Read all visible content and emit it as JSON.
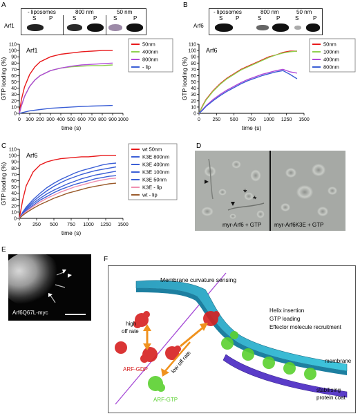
{
  "panels": {
    "A": {
      "letter": "A",
      "chart_label": "Arf1",
      "blot_label": "Arf1",
      "blot_headers": [
        "- liposomes",
        "800 nm",
        "50 nm"
      ],
      "blot_sub": [
        "S",
        "P",
        "S",
        "P",
        "S",
        "P"
      ]
    },
    "B": {
      "letter": "B",
      "chart_label": "Arf6",
      "blot_label": "Arf6",
      "blot_headers": [
        "- liposomes",
        "800 nm",
        "50 nm"
      ],
      "blot_sub": [
        "S",
        "P",
        "S",
        "P",
        "S",
        "P"
      ]
    },
    "C": {
      "letter": "C",
      "chart_label": "Arf6"
    },
    "D": {
      "letter": "D",
      "left_caption": "myr-Arf6 + GTP",
      "right_caption": "myr-Arf6K3E + GTP",
      "asterisk": "*"
    },
    "E": {
      "letter": "E",
      "caption": "Arf6Q67L-myc"
    },
    "F": {
      "letter": "F",
      "title": "Membrane curvature sensing",
      "right_text": [
        "Helix insertion",
        "GTP loading",
        "Effector molecule recruitment"
      ],
      "high_off": [
        "high",
        "off rate"
      ],
      "low_off": "low off rate",
      "arf_gdp": "ARF-GDP",
      "arf_gtp": "ARF-GTP",
      "membrane": "membrane",
      "coat": [
        "stabilising",
        "protein coat"
      ]
    }
  },
  "colors": {
    "red": "#e8191b",
    "green": "#8fd14f",
    "purple": "#b04ad8",
    "blue": "#3b5fd6",
    "pink": "#f08fb0",
    "brown": "#9a5a2a",
    "teal": "#3cc0d8",
    "orange": "#f0921e"
  },
  "chart_data": [
    {
      "type": "line",
      "id": "A",
      "title": "Arf1",
      "ylabel": "GTP loading (%)",
      "xlabel": "time (s)",
      "xlim": [
        0,
        1000
      ],
      "ylim": [
        0,
        110
      ],
      "xticks": [
        0,
        100,
        200,
        300,
        400,
        500,
        600,
        700,
        800,
        900,
        1000
      ],
      "yticks": [
        0,
        10,
        20,
        30,
        40,
        50,
        60,
        70,
        80,
        90,
        100,
        110
      ],
      "legend_position": "right",
      "series": [
        {
          "name": "50nm",
          "color": "#e8191b",
          "x": [
            0,
            20,
            50,
            100,
            150,
            200,
            300,
            400,
            500,
            600,
            700,
            800,
            900
          ],
          "values": [
            0,
            22,
            42,
            62,
            74,
            82,
            90,
            94,
            96,
            98,
            99,
            100,
            100
          ]
        },
        {
          "name": "400nm",
          "color": "#8fd14f",
          "x": [
            0,
            20,
            50,
            100,
            150,
            200,
            300,
            400,
            500,
            600,
            700,
            800,
            900
          ],
          "values": [
            0,
            12,
            27,
            43,
            53,
            60,
            68,
            72,
            74,
            75,
            76,
            76,
            77
          ]
        },
        {
          "name": "800nm",
          "color": "#b04ad8",
          "x": [
            0,
            20,
            50,
            100,
            150,
            200,
            300,
            400,
            500,
            600,
            700,
            800,
            900
          ],
          "values": [
            0,
            12,
            27,
            43,
            53,
            60,
            68,
            72,
            75,
            77,
            78,
            79,
            80
          ]
        },
        {
          "name": "- lip",
          "color": "#3b5fd6",
          "x": [
            0,
            50,
            100,
            200,
            300,
            400,
            500,
            600,
            700,
            800,
            900
          ],
          "values": [
            0,
            2,
            4,
            6,
            8,
            9,
            10,
            11,
            11.5,
            12,
            12.5
          ]
        }
      ]
    },
    {
      "type": "line",
      "id": "B",
      "title": "Arf6",
      "ylabel": "GTP loading (%)",
      "xlabel": "time (s)",
      "xlim": [
        0,
        1500
      ],
      "ylim": [
        0,
        110
      ],
      "xticks": [
        0,
        250,
        500,
        750,
        1000,
        1250,
        1500
      ],
      "yticks": [
        0,
        10,
        20,
        30,
        40,
        50,
        60,
        70,
        80,
        90,
        100,
        110
      ],
      "legend_position": "right",
      "series": [
        {
          "name": "50nm",
          "color": "#e8191b",
          "x": [
            0,
            50,
            100,
            200,
            300,
            400,
            500,
            600,
            700,
            800,
            900,
            1000,
            1100,
            1200,
            1300,
            1400
          ],
          "values": [
            0,
            12,
            22,
            36,
            47,
            56,
            63,
            70,
            75,
            80,
            85,
            90,
            93,
            97,
            99,
            99
          ]
        },
        {
          "name": "100nm",
          "color": "#8fd14f",
          "x": [
            0,
            50,
            100,
            200,
            300,
            400,
            500,
            600,
            700,
            800,
            900,
            1000,
            1100,
            1200,
            1300,
            1400
          ],
          "values": [
            0,
            11,
            21,
            35,
            46,
            55,
            62,
            69,
            74,
            79,
            84,
            89,
            93,
            96,
            98,
            99
          ]
        },
        {
          "name": "400nm",
          "color": "#b04ad8",
          "x": [
            0,
            50,
            100,
            200,
            300,
            400,
            500,
            600,
            700,
            800,
            900,
            1000,
            1100,
            1200,
            1300,
            1400
          ],
          "values": [
            0,
            6,
            12,
            22,
            30,
            37,
            43,
            49,
            54,
            58,
            62,
            65,
            68,
            70,
            66,
            64
          ]
        },
        {
          "name": "800nm",
          "color": "#3b5fd6",
          "x": [
            0,
            50,
            100,
            200,
            300,
            400,
            500,
            600,
            700,
            800,
            900,
            1000,
            1100,
            1200,
            1300,
            1400
          ],
          "values": [
            0,
            5,
            11,
            20,
            28,
            35,
            41,
            47,
            52,
            56,
            60,
            63,
            66,
            68,
            62,
            55
          ]
        }
      ]
    },
    {
      "type": "line",
      "id": "C",
      "title": "Arf6",
      "ylabel": "GTP loading (%)",
      "xlabel": "time (s)",
      "xlim": [
        0,
        1500
      ],
      "ylim": [
        0,
        110
      ],
      "xticks": [
        0,
        250,
        500,
        750,
        1000,
        1250,
        1500
      ],
      "yticks": [
        0,
        10,
        20,
        30,
        40,
        50,
        60,
        70,
        80,
        90,
        100,
        110
      ],
      "legend_position": "right",
      "series": [
        {
          "name": "wt 50nm",
          "color": "#e8191b",
          "x": [
            0,
            50,
            100,
            200,
            300,
            400,
            500,
            600,
            700,
            800,
            900,
            1000,
            1100,
            1200,
            1300,
            1400
          ],
          "values": [
            0,
            30,
            52,
            74,
            85,
            90,
            93,
            95,
            96,
            97,
            98,
            98,
            99,
            100,
            100,
            100
          ]
        },
        {
          "name": "K3E 800nm",
          "color": "#3b5fd6",
          "x": [
            0,
            50,
            100,
            200,
            300,
            400,
            500,
            600,
            700,
            800,
            900,
            1000,
            1100,
            1200,
            1300,
            1400
          ],
          "values": [
            0,
            10,
            18,
            30,
            40,
            49,
            56,
            62,
            67,
            72,
            76,
            79,
            82,
            85,
            87,
            88
          ]
        },
        {
          "name": "K3E 400nm",
          "color": "#3b5fd6",
          "x": [
            0,
            50,
            100,
            200,
            300,
            400,
            500,
            600,
            700,
            800,
            900,
            1000,
            1100,
            1200,
            1300,
            1400
          ],
          "values": [
            0,
            9,
            16,
            27,
            36,
            44,
            51,
            57,
            62,
            66,
            70,
            73,
            76,
            78,
            80,
            82
          ]
        },
        {
          "name": "K3E 100nm",
          "color": "#3b5fd6",
          "x": [
            0,
            50,
            100,
            200,
            300,
            400,
            500,
            600,
            700,
            800,
            900,
            1000,
            1100,
            1200,
            1300,
            1400
          ],
          "values": [
            0,
            8,
            14,
            24,
            32,
            39,
            45,
            50,
            55,
            59,
            63,
            66,
            69,
            71,
            73,
            75
          ]
        },
        {
          "name": "K3E 50nm",
          "color": "#3b5fd6",
          "x": [
            0,
            50,
            100,
            200,
            300,
            400,
            500,
            600,
            700,
            800,
            900,
            1000,
            1100,
            1200,
            1300,
            1400
          ],
          "values": [
            0,
            7,
            12,
            21,
            29,
            35,
            41,
            46,
            50,
            54,
            57,
            60,
            63,
            65,
            67,
            68
          ]
        },
        {
          "name": "K3E - lip",
          "color": "#f08fb0",
          "x": [
            0,
            50,
            100,
            200,
            300,
            400,
            500,
            600,
            700,
            800,
            900,
            1000,
            1100,
            1200,
            1300,
            1400
          ],
          "values": [
            0,
            6,
            11,
            19,
            26,
            32,
            37,
            42,
            46,
            50,
            53,
            56,
            59,
            61,
            63,
            64
          ]
        },
        {
          "name": "wt - lip",
          "color": "#9a5a2a",
          "x": [
            0,
            50,
            100,
            200,
            300,
            400,
            500,
            600,
            700,
            800,
            900,
            1000,
            1100,
            1200,
            1300,
            1400
          ],
          "values": [
            0,
            5,
            9,
            16,
            22,
            27,
            32,
            36,
            40,
            43,
            46,
            49,
            51,
            53,
            55,
            56
          ]
        }
      ]
    }
  ]
}
